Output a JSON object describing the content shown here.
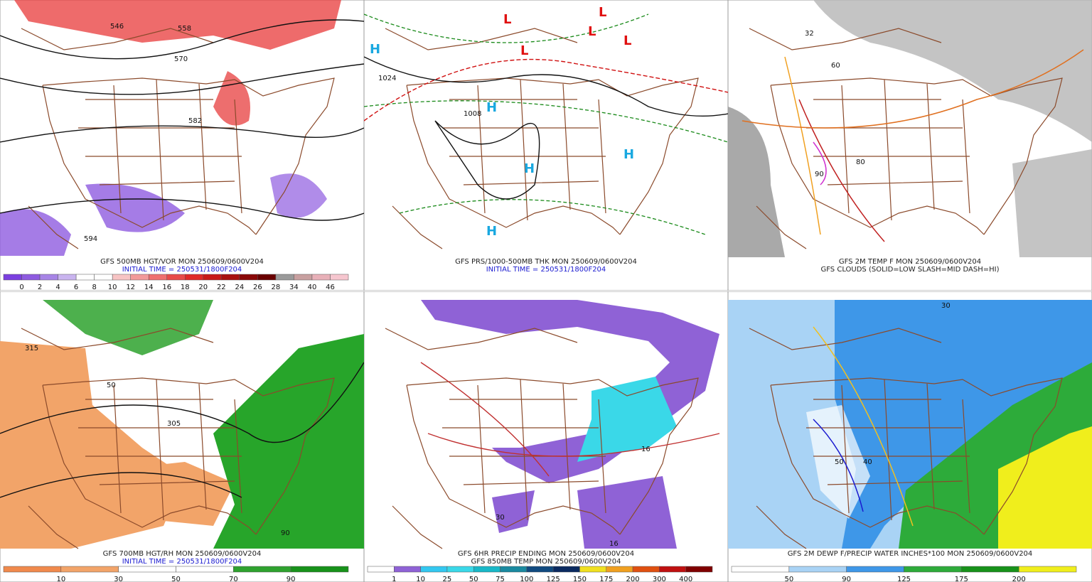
{
  "panels": [
    {
      "captions": [
        {
          "text": "GFS 500MB HGT/VOR MON 250609/0600V204",
          "color": "#222222"
        },
        {
          "text": "INITIAL TIME = 250531/1800F204",
          "color": "#1a1ad0"
        }
      ],
      "colorbar": {
        "colors": [
          "#7b3fe0",
          "#8e5be0",
          "#a784e6",
          "#c9b4ef",
          "#ffffff",
          "#ffffff",
          "#f7c4c4",
          "#f29a9a",
          "#ef7070",
          "#e84a4a",
          "#e02828",
          "#c81818",
          "#a81010",
          "#8a0808",
          "#6a0000",
          "#9a9a9a",
          "#c8a0a0",
          "#e8b0b8",
          "#f6c6cf"
        ],
        "labels": [
          "0",
          "2",
          "4",
          "6",
          "8",
          "10",
          "12",
          "14",
          "16",
          "18",
          "20",
          "22",
          "24",
          "26",
          "28",
          "34",
          "40",
          "46"
        ]
      },
      "map_labels": [
        "546",
        "558",
        "570",
        "582",
        "594"
      ]
    },
    {
      "captions": [
        {
          "text": "GFS PRS/1000-500MB THK MON 250609/0600V204",
          "color": "#222222"
        },
        {
          "text": "INITIAL TIME = 250531/1800F204",
          "color": "#1a1ad0"
        }
      ],
      "colorbar": null,
      "map_labels": [
        "H",
        "L",
        "1024",
        "1008"
      ]
    },
    {
      "captions": [
        {
          "text": "GFS 2M TEMP F MON 250609/0600V204",
          "color": "#222222"
        },
        {
          "text": "GFS CLOUDS (SOLID=LOW SLASH=MID DASH=HI)",
          "color": "#222222"
        }
      ],
      "colorbar": null,
      "map_labels": [
        "60",
        "80",
        "90",
        "32"
      ]
    },
    {
      "captions": [
        {
          "text": "GFS 700MB HGT/RH MON 250609/0600V204",
          "color": "#222222"
        },
        {
          "text": "INITIAL TIME = 250531/1800F204",
          "color": "#1a1ad0"
        }
      ],
      "colorbar": {
        "colors": [
          "#f08a4c",
          "#f2a469",
          "#ffffff",
          "#ffffff",
          "#2ea22e",
          "#17921a"
        ],
        "labels": [
          "10",
          "30",
          "50",
          "70",
          "90"
        ]
      },
      "map_labels": [
        "315",
        "50",
        "305",
        "90"
      ]
    },
    {
      "captions": [
        {
          "text": "GFS 6HR PRECIP ENDING MON 250609/0600V204",
          "color": "#222222"
        },
        {
          "text": "GFS 850MB TEMP MON 250609/0600V204",
          "color": "#222222"
        }
      ],
      "colorbar": {
        "colors": [
          "#ffffff",
          "#8f62d6",
          "#33c8f0",
          "#3ad8e8",
          "#18b8c8",
          "#1a8aa0",
          "#104a80",
          "#0a2a60",
          "#f0e020",
          "#f0a020",
          "#e05010",
          "#c01010",
          "#800000"
        ],
        "labels": [
          "1",
          "10",
          "25",
          "50",
          "75",
          "100",
          "125",
          "150",
          "175",
          "200",
          "300",
          "400"
        ]
      },
      "map_labels": [
        "30",
        "16"
      ]
    },
    {
      "captions": [
        {
          "text": "GFS 2M DEWP F/PRECIP WATER INCHES*100 MON 250609/0600V204",
          "color": "#222222"
        }
      ],
      "colorbar": {
        "colors": [
          "#ffffff",
          "#a9d3f5",
          "#3e97e8",
          "#2dab3a",
          "#17921a",
          "#f0ee1c"
        ],
        "labels": [
          "50",
          "90",
          "125",
          "175",
          "200"
        ]
      },
      "map_labels": [
        "50",
        "30",
        "40"
      ]
    }
  ]
}
